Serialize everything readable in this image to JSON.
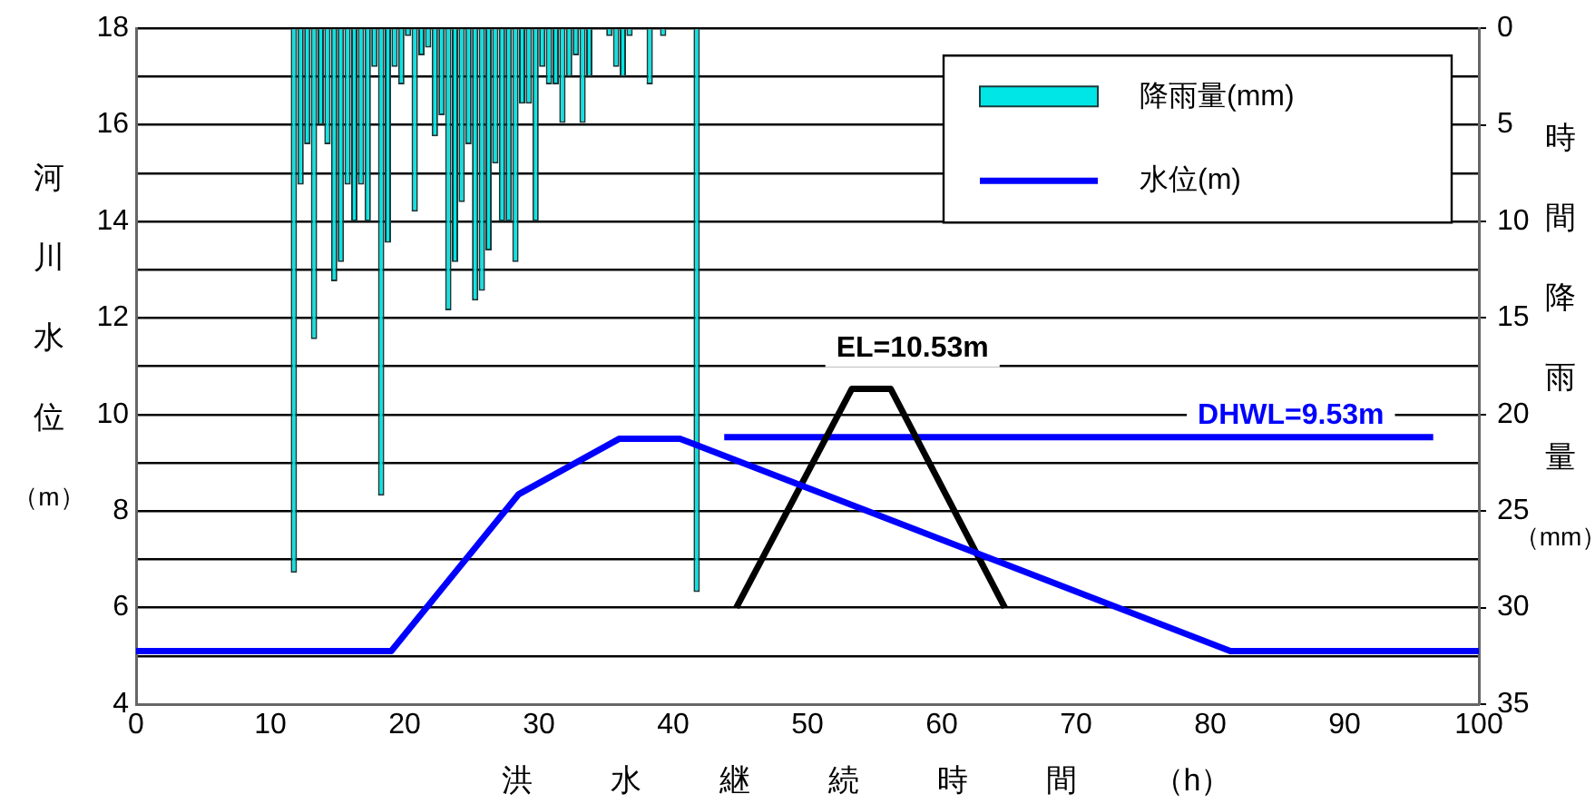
{
  "chart_data": {
    "type": "line",
    "xlabel": "洪水継続時間（h）",
    "ylabel": "河川水位（m）",
    "y2label": "時間降雨量（mm）",
    "xlim": [
      0,
      100
    ],
    "xticks": [
      0,
      10,
      20,
      30,
      40,
      50,
      60,
      70,
      80,
      90,
      100
    ],
    "ylim": [
      4,
      18
    ],
    "yticks": [
      4,
      {
        "value": 5,
        "label": null
      },
      6,
      {
        "value": 7,
        "label": null
      },
      8,
      {
        "value": 9,
        "label": null
      },
      10,
      {
        "value": 11,
        "label": null
      },
      12,
      {
        "value": 13,
        "label": null
      },
      14,
      {
        "value": 15,
        "label": null
      },
      16,
      {
        "value": 17,
        "label": null
      },
      18
    ],
    "y2lim": [
      35,
      0
    ],
    "y2ticks": [
      0,
      5,
      10,
      15,
      20,
      25,
      30,
      35
    ],
    "grid": "y",
    "legend": "top right",
    "marker": "none",
    "series": [
      {
        "name": "降雨量(mm)",
        "type": "bar",
        "axis": "y2",
        "color": "#00e6e6",
        "x": [
          11.75,
          12.25,
          12.75,
          13.25,
          13.75,
          14.25,
          14.75,
          15.25,
          15.75,
          16.25,
          16.75,
          17.25,
          17.75,
          18.25,
          18.75,
          19.25,
          19.75,
          20.25,
          20.75,
          21.25,
          21.75,
          22.25,
          22.75,
          23.25,
          23.75,
          24.25,
          24.75,
          25.25,
          25.75,
          26.25,
          26.75,
          27.25,
          27.75,
          28.25,
          28.75,
          29.25,
          29.75,
          30.25,
          30.75,
          31.25,
          31.75,
          32.25,
          32.75,
          33.25,
          33.75,
          34.25,
          34.75,
          35.25,
          35.75,
          36.25,
          36.75,
          37.25,
          37.75,
          38.25,
          38.75,
          39.25,
          39.75,
          40.25,
          40.75,
          41.25,
          41.75
        ],
        "values": [
          28.2,
          8.1,
          6,
          16.1,
          5,
          6,
          13.1,
          12.1,
          8.1,
          10,
          8.1,
          10,
          2,
          24.2,
          11.1,
          2,
          2.9,
          0.4,
          9.5,
          1.4,
          1,
          5.6,
          4.5,
          14.6,
          12.1,
          9,
          6,
          14.1,
          13.6,
          11.5,
          7,
          10,
          10,
          12.1,
          3.9,
          3.9,
          10,
          2,
          2.9,
          2.9,
          4.9,
          2.5,
          1.4,
          4.9,
          2.5,
          0,
          0,
          0.4,
          2,
          2.5,
          0.4,
          0,
          0,
          2.9,
          0,
          0.4,
          0,
          0,
          0,
          0,
          29.2
        ]
      },
      {
        "name": "水位(m)",
        "color": "#0000ff",
        "x": [
          0,
          19,
          28.5,
          36,
          40.5,
          81.5,
          100
        ],
        "values": [
          5.1,
          5.1,
          8.35,
          9.5,
          9.5,
          5.1,
          5.1
        ]
      },
      {
        "color": "#000000",
        "x": [
          44.7,
          53.3,
          56.2,
          64.7
        ],
        "values": [
          6,
          10.53,
          10.53,
          6
        ]
      },
      {
        "color": "#0000ff",
        "x": [
          43.8,
          96.6
        ],
        "values": [
          9.53,
          9.53
        ]
      }
    ],
    "annotations": [
      {
        "text": "EL=10.53m",
        "x": 56.2,
        "y": 10.53
      },
      {
        "text": "DHWL=9.53m",
        "x": 86,
        "y": 9.53
      }
    ]
  }
}
